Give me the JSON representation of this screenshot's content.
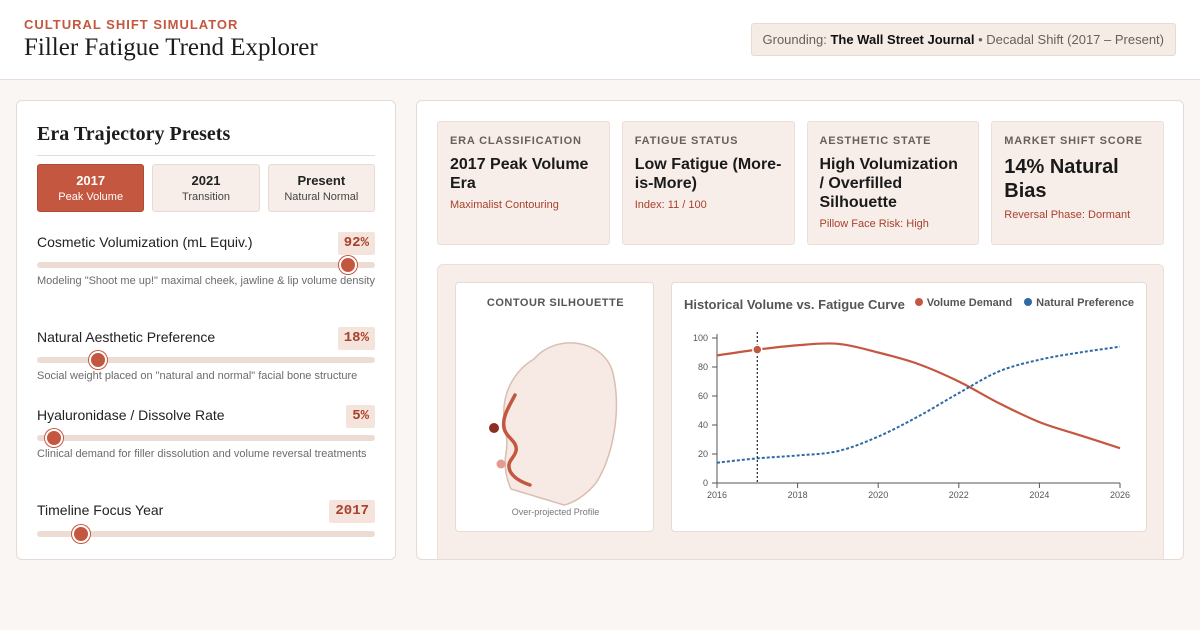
{
  "header": {
    "eyebrow": "CULTURAL SHIFT SIMULATOR",
    "title": "Filler Fatigue Trend Explorer",
    "grounding_prefix": "Grounding:",
    "grounding_source": "The Wall Street Journal",
    "grounding_suffix": " • Decadal Shift (2017 – Present)"
  },
  "presets_panel": {
    "title": "Era Trajectory Presets",
    "presets": [
      {
        "year": "2017",
        "label": "Peak Volume",
        "active": true
      },
      {
        "year": "2021",
        "label": "Transition",
        "active": false
      },
      {
        "year": "Present",
        "label": "Natural Normal",
        "active": false
      }
    ]
  },
  "sliders": [
    {
      "label": "Cosmetic Volumization (mL Equiv.)",
      "value": "92%",
      "level": 0.92,
      "desc": "Modeling \"Shoot me up!\" maximal cheek, jawline & lip volume density"
    },
    {
      "label": "Natural Aesthetic Preference",
      "value": "18%",
      "level": 0.18,
      "desc": "Social weight placed on \"natural and normal\" facial bone structure"
    },
    {
      "label": "Hyaluronidase / Dissolve Rate",
      "value": "5%",
      "level": 0.05,
      "desc": "Clinical demand for filler dissolution and volume reversal treatments"
    },
    {
      "label": "Timeline Focus Year",
      "value": "2017",
      "level": 0.13,
      "desc": ""
    }
  ],
  "cards": [
    {
      "title": "ERA CLASSIFICATION",
      "value": "2017 Peak Volume Era",
      "sub": "Maximalist Contouring"
    },
    {
      "title": "FATIGUE STATUS",
      "value": "Low Fatigue (More-is-More)",
      "sub": "Index: 11 / 100"
    },
    {
      "title": "AESTHETIC STATE",
      "value": "High Volumization / Overfilled Silhouette",
      "sub": "Pillow Face Risk: High"
    },
    {
      "title": "MARKET SHIFT SCORE",
      "value": "14% Natural Bias",
      "sub": "Reversal Phase: Dormant"
    }
  ],
  "silhouette": {
    "title": "CONTOUR SILHOUETTE",
    "caption": "Over-projected Profile"
  },
  "colors": {
    "accent": "#c4573f",
    "volume": "#c4573f",
    "natural": "#2f6aa8"
  },
  "chart_data": {
    "type": "line",
    "title": "Historical Volume vs. Fatigue Curve",
    "xlabel": "",
    "ylabel": "",
    "xlim": [
      2016,
      2026
    ],
    "ylim": [
      0,
      100
    ],
    "x_ticks": [
      2016,
      2018,
      2020,
      2022,
      2024,
      2026
    ],
    "y_ticks": [
      0,
      20,
      40,
      60,
      80,
      100
    ],
    "legend_position": "top-right",
    "grid": false,
    "x": [
      2016,
      2017,
      2018,
      2019,
      2020,
      2021,
      2022,
      2023,
      2024,
      2025,
      2026
    ],
    "series": [
      {
        "name": "Volume Demand",
        "values": [
          88,
          92,
          95,
          96,
          90,
          82,
          70,
          55,
          42,
          33,
          24
        ]
      },
      {
        "name": "Natural Preference",
        "values": [
          14,
          17,
          19,
          22,
          32,
          46,
          62,
          77,
          85,
          90,
          94
        ]
      }
    ],
    "focus_x": 2017,
    "focus_value": 92
  }
}
